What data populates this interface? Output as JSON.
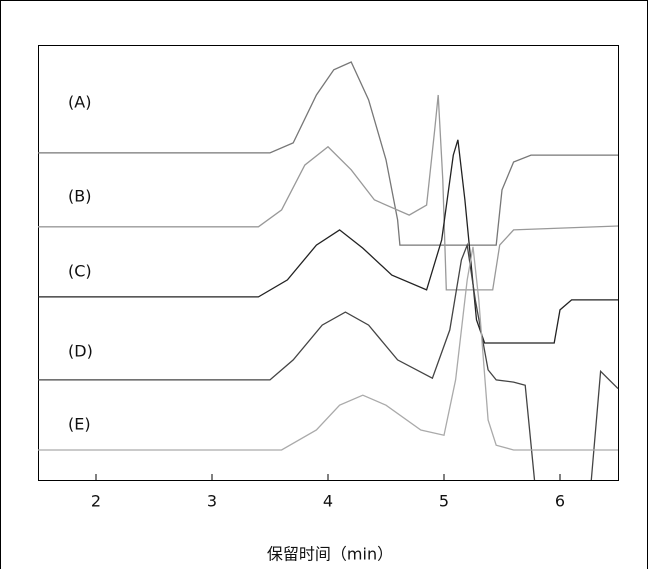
{
  "chart_data": {
    "type": "line",
    "xlabel": "保留时间（min）",
    "xlim": [
      1.5,
      6.5
    ],
    "xticks": [
      2,
      3,
      4,
      5,
      6
    ],
    "ylim": [
      0,
      100
    ],
    "series": [
      {
        "name": "(A)",
        "color": "#777777",
        "x": [
          1.5,
          3.5,
          3.7,
          3.9,
          4.05,
          4.2,
          4.35,
          4.5,
          4.6,
          4.62,
          5.45,
          5.5,
          5.6,
          5.75,
          6.5
        ],
        "values": [
          75.2,
          75.2,
          77.5,
          88.5,
          94.3,
          96.1,
          87.4,
          73.6,
          59.8,
          54,
          54,
          66.7,
          73.1,
          74.7,
          74.7
        ]
      },
      {
        "name": "(B)",
        "color": "#999999",
        "x": [
          1.5,
          3.4,
          3.6,
          3.8,
          4.0,
          4.2,
          4.4,
          4.7,
          4.85,
          4.92,
          4.95,
          4.99,
          5.02,
          5.42,
          5.48,
          5.6,
          6.5
        ],
        "values": [
          58.2,
          58.2,
          62.1,
          72.4,
          76.6,
          71.3,
          64.4,
          60.9,
          63.2,
          80.5,
          88.5,
          69,
          43.7,
          43.7,
          54,
          57.5,
          58.4
        ]
      },
      {
        "name": "(C)",
        "color": "#222222",
        "x": [
          1.5,
          3.4,
          3.65,
          3.9,
          4.1,
          4.3,
          4.55,
          4.85,
          4.98,
          5.08,
          5.12,
          5.18,
          5.28,
          5.35,
          5.95,
          6.0,
          6.1,
          6.5
        ],
        "values": [
          42.1,
          42.1,
          46,
          54,
          57.5,
          53.3,
          47.1,
          43.7,
          55.2,
          74.7,
          78.2,
          64.4,
          36.8,
          31.5,
          31.5,
          39.1,
          41.4,
          41.4
        ]
      },
      {
        "name": "(D)",
        "color": "#444444",
        "x": [
          1.5,
          3.5,
          3.7,
          3.95,
          4.15,
          4.35,
          4.6,
          4.9,
          5.05,
          5.15,
          5.2,
          5.27,
          5.38,
          5.45,
          5.6,
          5.7,
          5.78,
          6.0,
          6.27,
          6.35,
          6.5
        ],
        "values": [
          23,
          23,
          27.6,
          35.6,
          38.6,
          35.6,
          27.6,
          23.4,
          34.5,
          50.6,
          54,
          41.4,
          25.3,
          23,
          22.5,
          21.8,
          0,
          null,
          0,
          25,
          21
        ]
      },
      {
        "name": "(E)",
        "color": "#aaaaaa",
        "x": [
          1.5,
          3.6,
          3.9,
          4.1,
          4.3,
          4.5,
          4.8,
          5.0,
          5.1,
          5.2,
          5.25,
          5.3,
          5.38,
          5.45,
          5.6,
          6.5
        ],
        "values": [
          6.9,
          6.9,
          11.5,
          17.2,
          19.5,
          17.2,
          11.5,
          10.3,
          23,
          46,
          53.6,
          41.4,
          13.8,
          8,
          6.9,
          6.9
        ]
      }
    ]
  }
}
